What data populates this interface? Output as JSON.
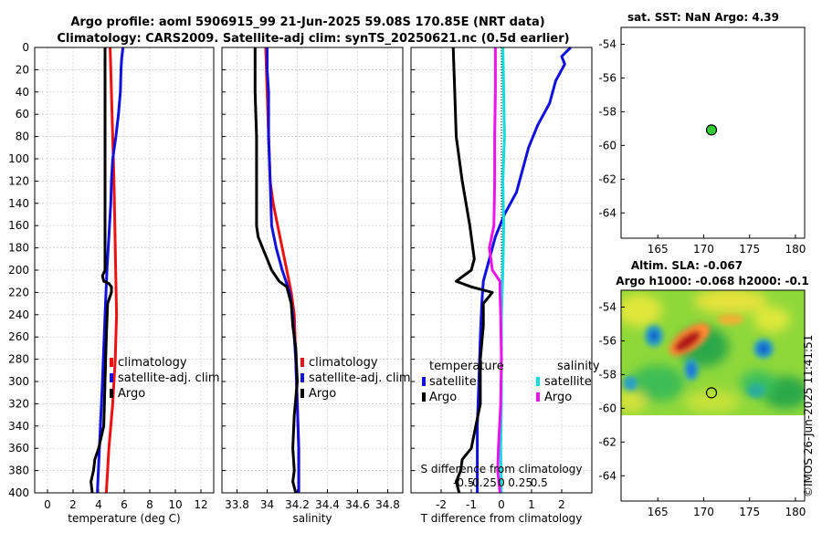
{
  "title": {
    "line1": "Argo profile: aoml 5906915_99 21-Jun-2025 59.08S 170.85E (NRT data)",
    "line2": "Climatology: CARS2009. Satellite-adj clim: synTS_20250621.nc (0.5d earlier)"
  },
  "watermark": "©IMOS 26-Jun-2025 11:41:51",
  "colors": {
    "climatology": "#ee1111",
    "satellite": "#1111dd",
    "argo": "#000000",
    "sal_satellite": "#11dddd",
    "sal_argo": "#ee11ee",
    "marker_fill": "#33cc33"
  },
  "chart_data": [
    {
      "id": "temperature",
      "type": "line",
      "xlabel": "temperature (deg C)",
      "ylabel": "",
      "xlim": [
        -1,
        13
      ],
      "ylim": [
        400,
        0
      ],
      "xticks": [
        0,
        2,
        4,
        6,
        8,
        10,
        12
      ],
      "xticklabels": [
        "0",
        "2",
        "4",
        "6",
        "8",
        "10",
        "12"
      ],
      "yticks": [
        0,
        20,
        40,
        60,
        80,
        100,
        120,
        140,
        160,
        180,
        200,
        220,
        240,
        260,
        280,
        300,
        320,
        340,
        360,
        380,
        400
      ],
      "yticklabels": [
        "0",
        "20",
        "40",
        "60",
        "80",
        "100",
        "120",
        "140",
        "160",
        "180",
        "200",
        "220",
        "240",
        "260",
        "280",
        "300",
        "320",
        "340",
        "360",
        "380",
        "400"
      ],
      "grid": true,
      "legend": {
        "position": "middle-right",
        "entries": [
          "climatology",
          "satellite-adj. clim",
          "Argo"
        ]
      },
      "series": [
        {
          "name": "climatology",
          "color": "#ee1111",
          "depth": [
            0,
            40,
            80,
            120,
            180,
            240,
            280,
            320,
            360,
            400
          ],
          "values": [
            4.9,
            5.0,
            5.1,
            5.2,
            5.3,
            5.4,
            5.3,
            5.1,
            4.8,
            4.6
          ]
        },
        {
          "name": "satellite-adj. clim",
          "color": "#1111dd",
          "depth": [
            0,
            10,
            20,
            40,
            60,
            80,
            100,
            120,
            140,
            160,
            180,
            200,
            240,
            300,
            350,
            400
          ],
          "values": [
            5.9,
            5.8,
            5.75,
            5.7,
            5.55,
            5.35,
            5.1,
            5.0,
            4.95,
            4.85,
            4.75,
            4.65,
            4.5,
            4.3,
            4.1,
            3.9
          ]
        },
        {
          "name": "Argo",
          "color": "#000000",
          "depth": [
            0,
            100,
            200,
            205,
            210,
            212,
            215,
            220,
            230,
            260,
            300,
            340,
            360,
            370,
            380,
            390,
            400
          ],
          "values": [
            4.5,
            4.5,
            4.5,
            4.3,
            4.4,
            4.8,
            5.0,
            5.0,
            4.7,
            4.6,
            4.5,
            4.4,
            4.0,
            3.7,
            3.6,
            3.4,
            3.5
          ]
        }
      ]
    },
    {
      "id": "salinity",
      "type": "line",
      "xlabel": "salinity",
      "xlim": [
        33.7,
        34.9
      ],
      "ylim": [
        400,
        0
      ],
      "xticks": [
        33.8,
        34.0,
        34.2,
        34.4,
        34.6,
        34.8
      ],
      "xticklabels": [
        "33.8",
        "34",
        "34.2",
        "34.4",
        "34.6",
        "34.8"
      ],
      "grid": true,
      "legend": {
        "position": "middle-right",
        "entries": [
          "climatology",
          "satellite-adj. clim",
          "Argo"
        ]
      },
      "series": [
        {
          "name": "climatology",
          "color": "#ee1111",
          "depth": [
            0,
            40,
            80,
            120,
            140,
            160,
            180,
            200,
            220,
            240,
            280,
            320,
            360,
            400
          ],
          "values": [
            33.99,
            34.0,
            34.01,
            34.02,
            34.04,
            34.07,
            34.1,
            34.13,
            34.16,
            34.18,
            34.19,
            34.2,
            34.21,
            34.21
          ]
        },
        {
          "name": "satellite-adj. clim",
          "color": "#1111dd",
          "depth": [
            0,
            20,
            40,
            80,
            120,
            160,
            180,
            200,
            220,
            240,
            280,
            320,
            360,
            400
          ],
          "values": [
            34.0,
            34.0,
            34.01,
            34.01,
            34.02,
            34.03,
            34.06,
            34.1,
            34.15,
            34.17,
            34.19,
            34.2,
            34.21,
            34.21
          ]
        },
        {
          "name": "Argo",
          "color": "#000000",
          "depth": [
            0,
            40,
            80,
            120,
            160,
            170,
            180,
            190,
            200,
            210,
            215,
            220,
            230,
            250,
            270,
            300,
            330,
            360,
            380,
            390,
            400
          ],
          "values": [
            33.92,
            33.92,
            33.93,
            33.93,
            33.93,
            33.94,
            33.97,
            34.0,
            34.03,
            34.08,
            34.13,
            34.14,
            34.16,
            34.17,
            34.19,
            34.2,
            34.18,
            34.17,
            34.18,
            34.17,
            34.19
          ]
        }
      ]
    },
    {
      "id": "difference",
      "type": "line",
      "xlabel": "T difference from climatology",
      "xlim": [
        -3,
        3
      ],
      "ylim": [
        400,
        0
      ],
      "xticks": [
        -2,
        -1,
        0,
        1,
        2
      ],
      "xticklabels": [
        "-2",
        "-1",
        "0",
        "1",
        "2"
      ],
      "top_axis_label": "S difference from climatology",
      "top_ticks": [
        -0.5,
        -0.25,
        0,
        0.25,
        0.5
      ],
      "top_ticklabels": [
        "-0.5",
        "-0.25",
        "0",
        "0.25",
        "0.5"
      ],
      "grid": true,
      "legend": {
        "position": "lower-middle",
        "temperature_title": "temperature",
        "salinity_title": "salinity",
        "temperature_entries": [
          "satellite",
          "Argo"
        ],
        "salinity_entries": [
          "satellite",
          "Argo"
        ]
      },
      "series": [
        {
          "name": "temperature satellite",
          "color": "#1111dd",
          "depth": [
            0,
            8,
            15,
            30,
            50,
            70,
            90,
            110,
            130,
            150,
            170,
            190,
            210,
            230,
            260,
            300,
            340,
            370,
            400
          ],
          "values": [
            2.3,
            2.0,
            2.1,
            1.8,
            1.6,
            1.2,
            0.9,
            0.7,
            0.5,
            0.1,
            -0.2,
            -0.4,
            -0.6,
            -0.65,
            -0.7,
            -0.75,
            -0.8,
            -0.8,
            -0.8
          ]
        },
        {
          "name": "temperature Argo",
          "color": "#000000",
          "depth": [
            0,
            40,
            80,
            120,
            160,
            190,
            200,
            210,
            215,
            220,
            230,
            250,
            280,
            320,
            360,
            370,
            380,
            390,
            400
          ],
          "values": [
            -1.6,
            -1.55,
            -1.5,
            -1.3,
            -1.05,
            -0.9,
            -1.0,
            -1.5,
            -1.0,
            -0.3,
            -0.6,
            -0.6,
            -0.7,
            -0.7,
            -1.0,
            -1.3,
            -1.35,
            -1.5,
            -1.4
          ]
        },
        {
          "name": "salinity satellite",
          "color": "#11dddd",
          "depth": [
            0,
            40,
            80,
            120,
            160,
            200,
            240,
            280,
            320,
            360,
            400
          ],
          "values": [
            0.02,
            0.03,
            0.04,
            0.02,
            0.03,
            0.02,
            0.0,
            0.0,
            0.0,
            -0.01,
            0.0
          ]
        },
        {
          "name": "salinity Argo",
          "color": "#ee11ee",
          "depth": [
            0,
            40,
            80,
            120,
            160,
            180,
            200,
            210,
            220,
            240,
            280,
            320,
            360,
            380,
            400
          ],
          "values": [
            -0.08,
            -0.08,
            -0.09,
            -0.09,
            -0.1,
            -0.16,
            -0.12,
            -0.02,
            -0.02,
            -0.01,
            0.0,
            -0.01,
            -0.04,
            -0.05,
            -0.02
          ]
        }
      ]
    },
    {
      "id": "sst_map",
      "type": "scatter",
      "title": "sat. SST: NaN Argo: 4.39",
      "xlim": [
        161,
        181
      ],
      "ylim": [
        -65.5,
        -53
      ],
      "xticks": [
        165,
        170,
        175,
        180
      ],
      "xticklabels": [
        "165",
        "170",
        "175",
        "180"
      ],
      "yticks": [
        -54,
        -56,
        -58,
        -60,
        -62,
        -64
      ],
      "yticklabels": [
        "-54",
        "-56",
        "-58",
        "-60",
        "-62",
        "-64"
      ],
      "points": [
        {
          "lon": 170.85,
          "lat": -59.08
        }
      ]
    },
    {
      "id": "sla_map",
      "type": "heatmap",
      "title_line1": "Altim. SLA: -0.067",
      "title_line2": "Argo h1000: -0.068 h2000: -0.1",
      "xlim": [
        161,
        181
      ],
      "ylim": [
        -65.5,
        -53
      ],
      "xticks": [
        165,
        170,
        175,
        180
      ],
      "xticklabels": [
        "165",
        "170",
        "175",
        "180"
      ],
      "yticks": [
        -54,
        -56,
        -58,
        -60,
        -62,
        -64
      ],
      "yticklabels": [
        "-54",
        "-56",
        "-58",
        "-60",
        "-62",
        "-64"
      ],
      "data_extent": {
        "lon": [
          161,
          181
        ],
        "lat": [
          -60,
          -53.3
        ]
      },
      "points": [
        {
          "lon": 170.85,
          "lat": -59.08
        }
      ]
    }
  ]
}
